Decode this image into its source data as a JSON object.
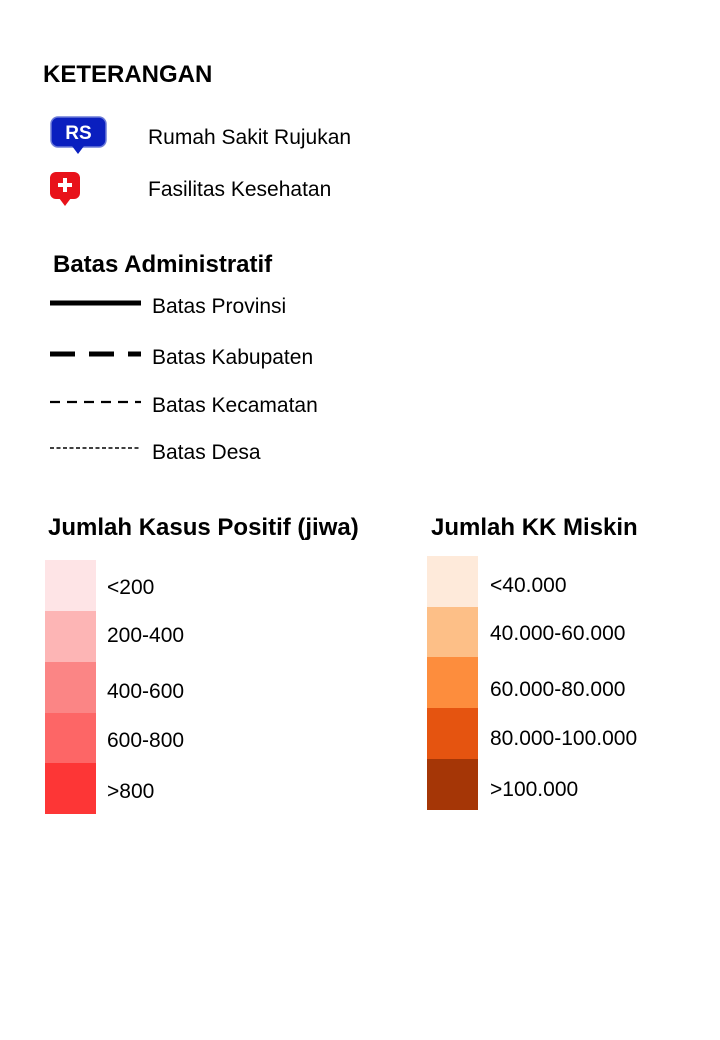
{
  "legend": {
    "title": "KETERANGAN",
    "facilities": [
      {
        "icon": "rs-marker-icon",
        "badge": "RS",
        "label": "Rumah Sakit Rujukan",
        "color": "#0a1fbf"
      },
      {
        "icon": "health-facility-marker-icon",
        "label": "Fasilitas Kesehatan",
        "color": "#e8121a"
      }
    ],
    "admin": {
      "title": "Batas Administratif",
      "items": [
        {
          "label": "Batas Provinsi",
          "line": "solid"
        },
        {
          "label": "Batas Kabupaten",
          "line": "long-dash"
        },
        {
          "label": "Batas Kecamatan",
          "line": "dash"
        },
        {
          "label": "Batas Desa",
          "line": "fine-dash"
        }
      ]
    },
    "cases": {
      "title": "Jumlah Kasus Positif (jiwa)",
      "classes": [
        {
          "label": "<200",
          "color": "#fee4e6"
        },
        {
          "label": "200-400",
          "color": "#fdb5b5"
        },
        {
          "label": "400-600",
          "color": "#fb8585"
        },
        {
          "label": "600-800",
          "color": "#fd6666"
        },
        {
          "label": ">800",
          "color": "#fd3636"
        }
      ]
    },
    "poverty": {
      "title": "Jumlah KK Miskin",
      "classes": [
        {
          "label": "<40.000",
          "color": "#feeada"
        },
        {
          "label": "40.000-60.000",
          "color": "#fdbf87"
        },
        {
          "label": "60.000-80.000",
          "color": "#fd8d3d"
        },
        {
          "label": "80.000-100.000",
          "color": "#e55410"
        },
        {
          "label": ">100.000",
          "color": "#a53606"
        }
      ]
    }
  }
}
